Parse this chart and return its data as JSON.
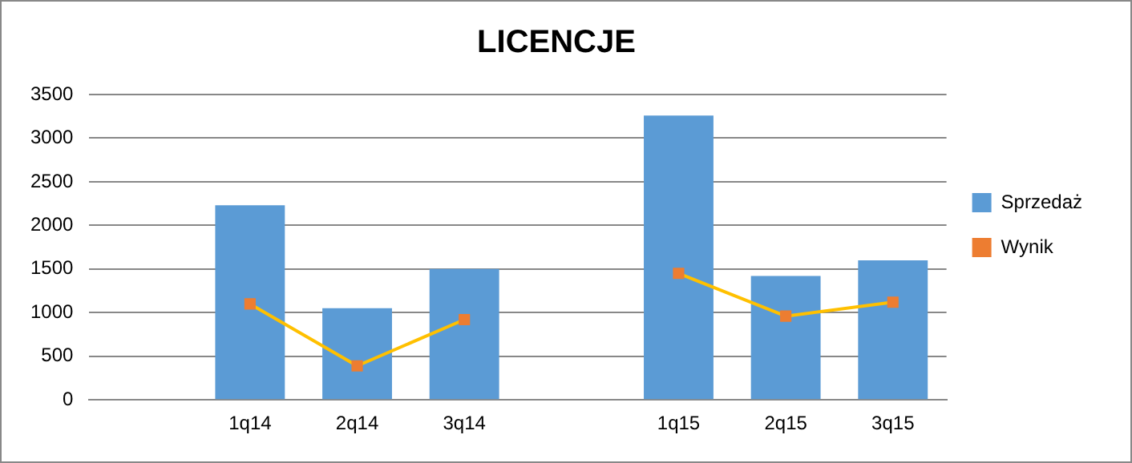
{
  "chart_data": {
    "type": "bar",
    "title": "LICENCJE",
    "categories": [
      null,
      "1q14",
      "2q14",
      "3q14",
      null,
      "1q15",
      "2q15",
      "3q15"
    ],
    "series": [
      {
        "name": "Sprzedaż",
        "color": "#5b9bd5",
        "values": [
          null,
          2230,
          1050,
          1500,
          null,
          3260,
          1420,
          1600
        ]
      },
      {
        "name": "Wynik",
        "type": "line",
        "color": "#ffc000",
        "marker": "square",
        "values": [
          null,
          1100,
          390,
          920,
          null,
          1450,
          960,
          1120
        ]
      }
    ],
    "ylim": [
      0,
      3500
    ],
    "yticks": [
      0,
      500,
      1000,
      1500,
      2000,
      2500,
      3000,
      3500
    ],
    "grid": "y",
    "legend": "right"
  }
}
